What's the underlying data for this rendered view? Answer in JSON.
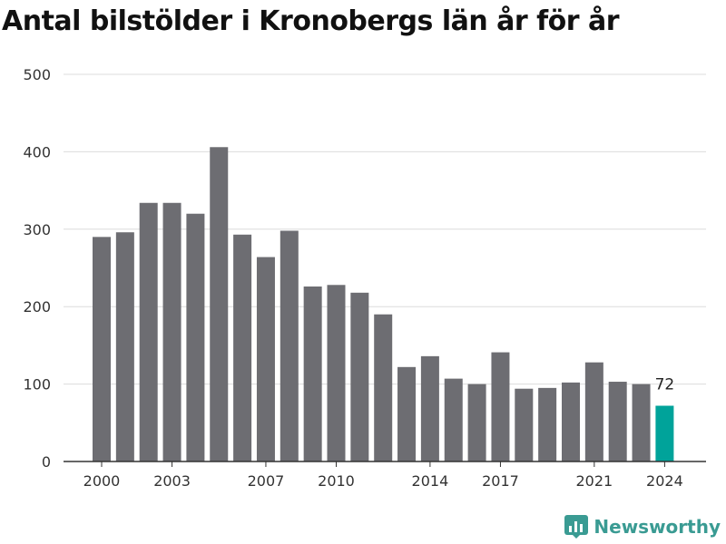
{
  "title": "Antal bilstölder i Kronobergs län år för år",
  "brand": {
    "name": "Newsworthy",
    "icon": "newsworthy-logo-icon",
    "color": "#3a9b93"
  },
  "chart_data": {
    "type": "bar",
    "title": "Antal bilstölder i Kronobergs län år för år",
    "xlabel": "",
    "ylabel": "",
    "categories": [
      "2000",
      "2001",
      "2002",
      "2003",
      "2004",
      "2005",
      "2006",
      "2007",
      "2008",
      "2009",
      "2010",
      "2011",
      "2012",
      "2013",
      "2014",
      "2015",
      "2016",
      "2017",
      "2018",
      "2019",
      "2020",
      "2021",
      "2022",
      "2023",
      "2024"
    ],
    "values": [
      290,
      296,
      334,
      334,
      320,
      406,
      293,
      264,
      298,
      226,
      228,
      218,
      190,
      122,
      136,
      107,
      100,
      141,
      94,
      95,
      102,
      128,
      103,
      100,
      72
    ],
    "x_tick_labels": [
      "2000",
      "2003",
      "2007",
      "2010",
      "2014",
      "2017",
      "2021",
      "2024"
    ],
    "y_ticks": [
      0,
      100,
      200,
      300,
      400,
      500
    ],
    "ylim": [
      0,
      500
    ],
    "grid": "horizontal",
    "highlight": {
      "category": "2024",
      "label": "72",
      "color": "#00a39a"
    },
    "bar_color": "#6d6d72"
  }
}
